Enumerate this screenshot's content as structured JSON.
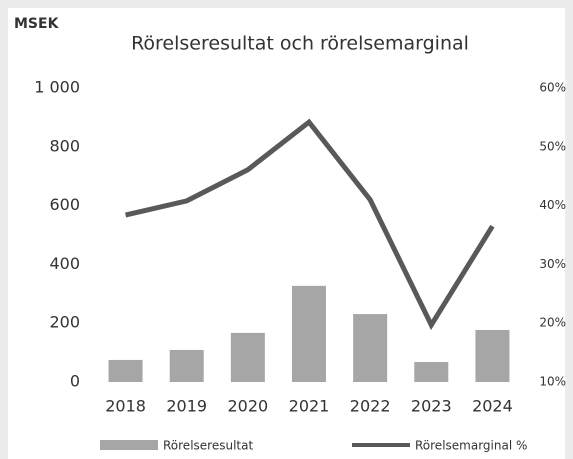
{
  "chart_data": {
    "type": "bar_line",
    "unit_label": "MSEK",
    "title": "Rörelseresultat och rörelsemarginal",
    "categories": [
      "2018",
      "2019",
      "2020",
      "2021",
      "2022",
      "2023",
      "2024"
    ],
    "series": [
      {
        "name": "Rörelseresultat",
        "type": "bar",
        "color": "#a6a6a6",
        "values": [
          75,
          109,
          167,
          327,
          231,
          68,
          177
        ]
      },
      {
        "name": "Rörelsemarginal %",
        "type": "line",
        "axis": "y2",
        "color": "#595959",
        "values": [
          38.4,
          40.8,
          46.1,
          54.2,
          41,
          19.7,
          36.5
        ]
      }
    ],
    "ylim": [
      0,
      1000
    ],
    "yticks": [
      0,
      200,
      400,
      600,
      800,
      {
        "value": 1000,
        "label": "1 000"
      }
    ],
    "y2lim": [
      10,
      60
    ],
    "y2ticks": [
      {
        "value": 10,
        "label": "10%"
      },
      {
        "value": 20,
        "label": "20%"
      },
      {
        "value": 30,
        "label": "30%"
      },
      {
        "value": 40,
        "label": "40%"
      },
      {
        "value": 50,
        "label": "50%"
      },
      {
        "value": 60,
        "label": "60%"
      }
    ],
    "grid": false,
    "legend": "bottom"
  }
}
